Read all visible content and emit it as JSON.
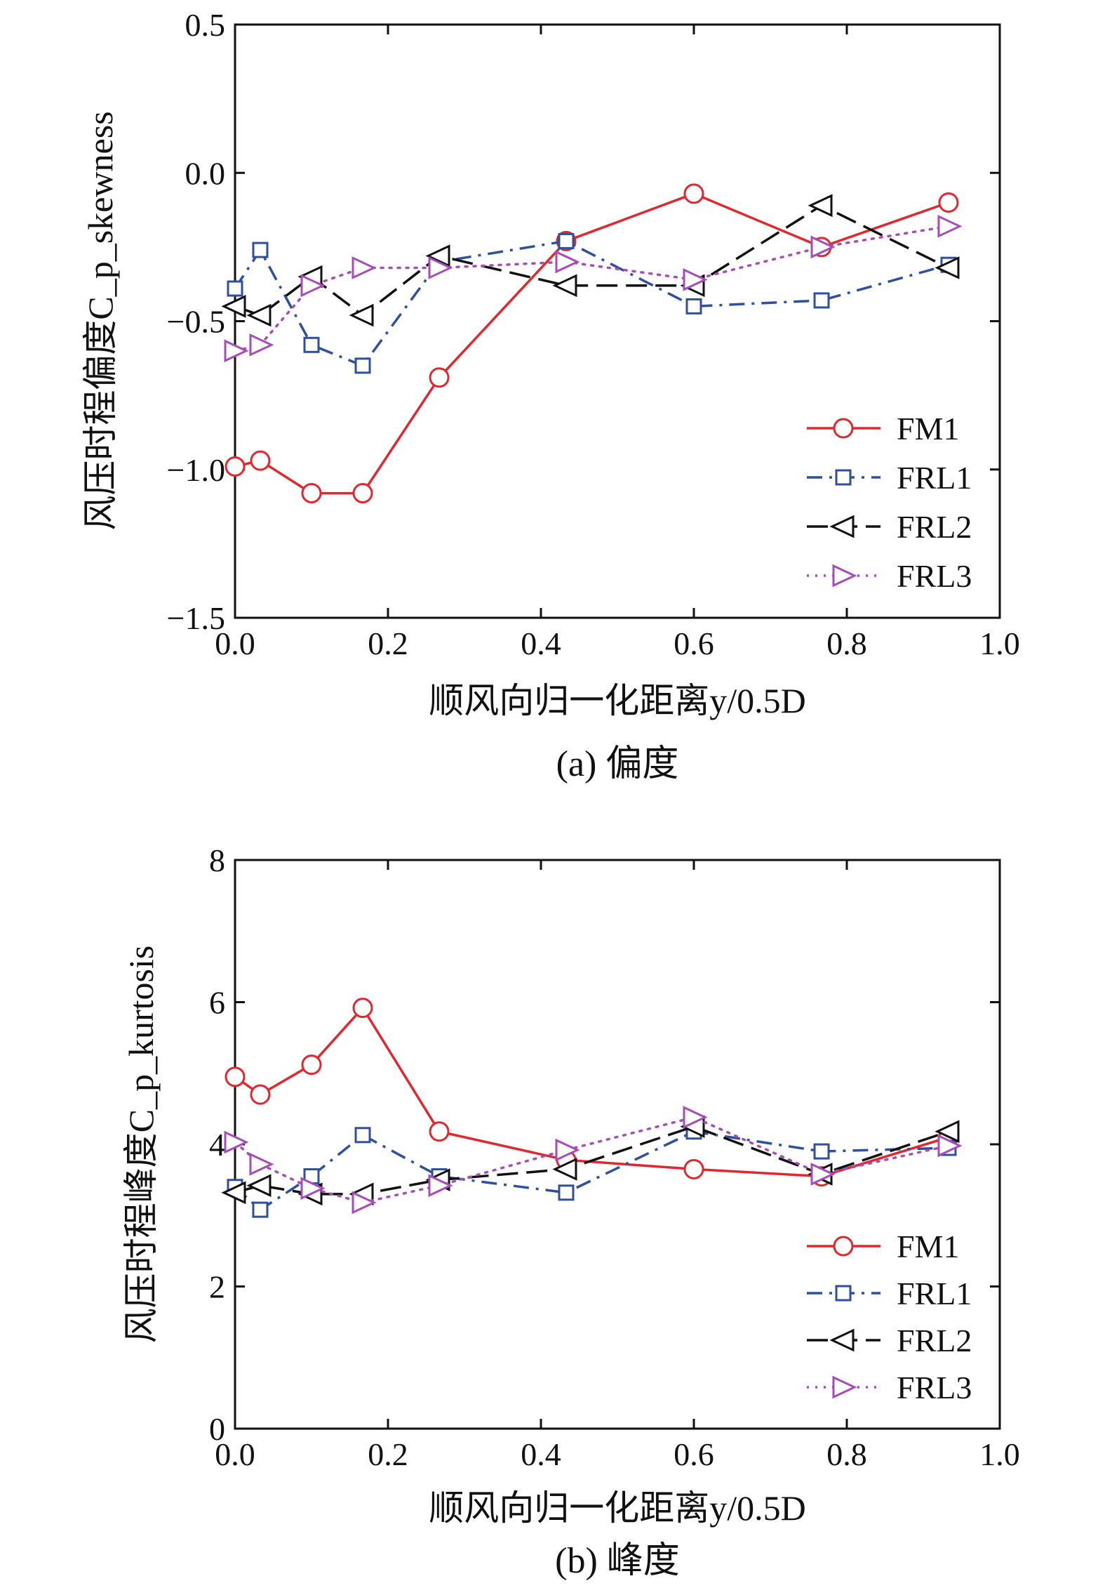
{
  "charts": [
    {
      "caption": "(a) 偏度",
      "chart_data": {
        "type": "line",
        "title": "",
        "xlabel": "顺风向归一化距离y/0.5D",
        "ylabel": "风压时程偏度C_p_skewness",
        "xlim": [
          0.0,
          1.0
        ],
        "ylim": [
          -1.5,
          0.5
        ],
        "xticks": [
          0.0,
          0.2,
          0.4,
          0.6,
          0.8,
          1.0
        ],
        "yticks": [
          -1.5,
          -1.0,
          -0.5,
          0.0,
          0.5
        ],
        "xtick_labels": [
          "0.0",
          "0.2",
          "0.4",
          "0.6",
          "0.8",
          "1.0"
        ],
        "ytick_labels": [
          "−1.5",
          "−1.0",
          "−0.5",
          "0.0",
          "0.5"
        ],
        "grid": false,
        "legend_position": "bottom-right",
        "series": [
          {
            "name": "FM1",
            "color": "#e0282e",
            "dash": "solid",
            "marker": "circle",
            "x": [
              0.0,
              0.033,
              0.1,
              0.167,
              0.267,
              0.433,
              0.6,
              0.767,
              0.933
            ],
            "y": [
              -0.99,
              -0.97,
              -1.08,
              -1.08,
              -0.69,
              -0.23,
              -0.07,
              -0.25,
              -0.1
            ]
          },
          {
            "name": "FRL1",
            "color": "#2f4f9f",
            "dash": "dashdot",
            "marker": "square",
            "x": [
              0.0,
              0.033,
              0.1,
              0.167,
              0.267,
              0.433,
              0.6,
              0.767,
              0.933
            ],
            "y": [
              -0.39,
              -0.26,
              -0.58,
              -0.65,
              -0.3,
              -0.23,
              -0.45,
              -0.43,
              -0.31
            ]
          },
          {
            "name": "FRL2",
            "color": "#111111",
            "dash": "longdash",
            "marker": "triangle-left",
            "x": [
              0.0,
              0.033,
              0.1,
              0.167,
              0.267,
              0.433,
              0.6,
              0.767,
              0.933
            ],
            "y": [
              -0.45,
              -0.48,
              -0.35,
              -0.48,
              -0.28,
              -0.38,
              -0.38,
              -0.11,
              -0.32
            ]
          },
          {
            "name": "FRL3",
            "color": "#a64db8",
            "dash": "dotted",
            "marker": "triangle-right",
            "x": [
              0.0,
              0.033,
              0.1,
              0.167,
              0.267,
              0.433,
              0.6,
              0.767,
              0.933
            ],
            "y": [
              -0.6,
              -0.58,
              -0.38,
              -0.32,
              -0.32,
              -0.3,
              -0.36,
              -0.25,
              -0.18
            ]
          }
        ]
      }
    },
    {
      "caption": "(b) 峰度",
      "chart_data": {
        "type": "line",
        "title": "",
        "xlabel": "顺风向归一化距离y/0.5D",
        "ylabel": "风压时程峰度C_p_kurtosis",
        "xlim": [
          0.0,
          1.0
        ],
        "ylim": [
          0,
          8
        ],
        "xticks": [
          0.0,
          0.2,
          0.4,
          0.6,
          0.8,
          1.0
        ],
        "yticks": [
          0,
          2,
          4,
          6,
          8
        ],
        "xtick_labels": [
          "0.0",
          "0.2",
          "0.4",
          "0.6",
          "0.8",
          "1.0"
        ],
        "ytick_labels": [
          "0",
          "2",
          "4",
          "6",
          "8"
        ],
        "grid": false,
        "legend_position": "bottom-right",
        "series": [
          {
            "name": "FM1",
            "color": "#e0282e",
            "dash": "solid",
            "marker": "circle",
            "x": [
              0.0,
              0.033,
              0.1,
              0.167,
              0.267,
              0.433,
              0.6,
              0.767,
              0.933
            ],
            "y": [
              4.95,
              4.7,
              5.12,
              5.92,
              4.18,
              3.78,
              3.65,
              3.55,
              4.1
            ]
          },
          {
            "name": "FRL1",
            "color": "#2f4f9f",
            "dash": "dashdot",
            "marker": "square",
            "x": [
              0.0,
              0.033,
              0.1,
              0.167,
              0.267,
              0.433,
              0.6,
              0.767,
              0.933
            ],
            "y": [
              3.4,
              3.08,
              3.55,
              4.13,
              3.55,
              3.32,
              4.18,
              3.9,
              3.95
            ]
          },
          {
            "name": "FRL2",
            "color": "#111111",
            "dash": "longdash",
            "marker": "triangle-left",
            "x": [
              0.0,
              0.033,
              0.1,
              0.167,
              0.267,
              0.433,
              0.6,
              0.767,
              0.933
            ],
            "y": [
              3.32,
              3.42,
              3.3,
              3.3,
              3.5,
              3.65,
              4.25,
              3.58,
              4.18
            ]
          },
          {
            "name": "FRL3",
            "color": "#a64db8",
            "dash": "dotted",
            "marker": "triangle-right",
            "x": [
              0.0,
              0.033,
              0.1,
              0.167,
              0.267,
              0.433,
              0.6,
              0.767,
              0.933
            ],
            "y": [
              4.03,
              3.72,
              3.38,
              3.18,
              3.42,
              3.92,
              4.38,
              3.58,
              3.98
            ]
          }
        ]
      }
    }
  ]
}
